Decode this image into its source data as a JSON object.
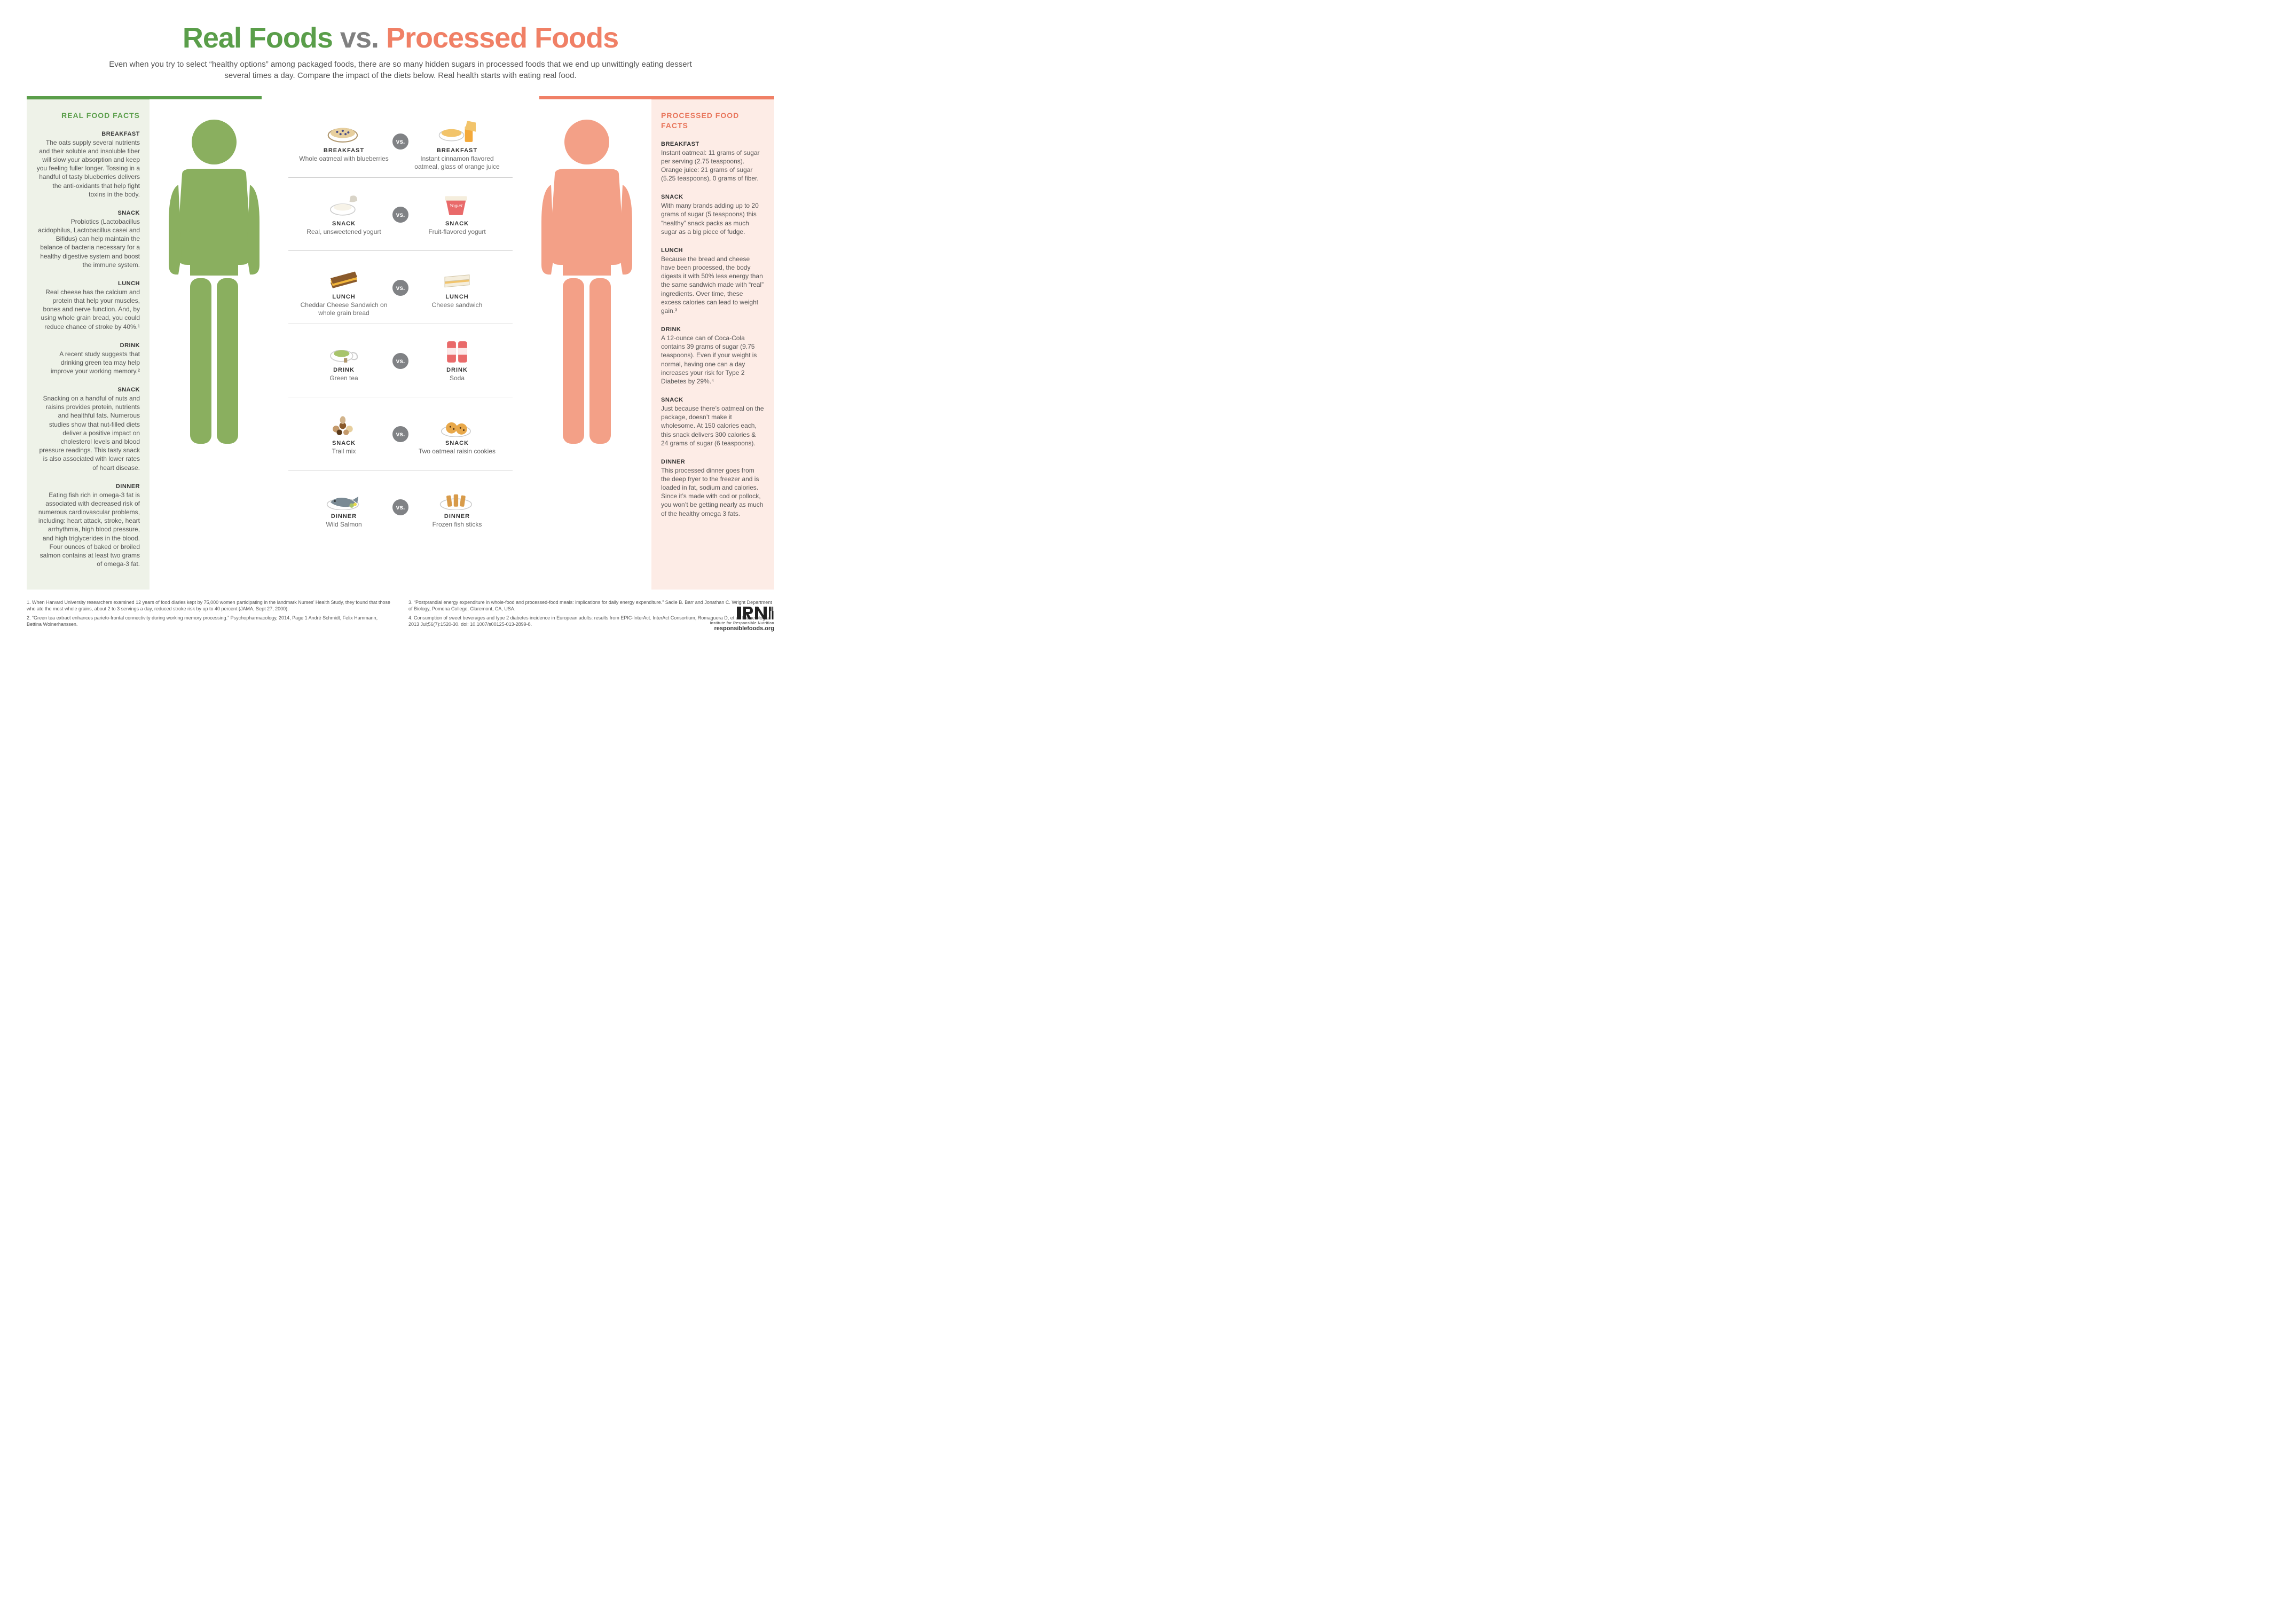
{
  "colors": {
    "real": "#5a9e4a",
    "processed": "#f08066",
    "vs_gray": "#808080",
    "badge_gray": "#808285",
    "panel_real_bg": "#eef2e8",
    "panel_proc_bg": "#fdece6",
    "person_real": "#8aaf5f",
    "person_proc": "#f3a087",
    "divider": "#cfcfcf"
  },
  "title": {
    "real": "Real Foods",
    "vs": "vs.",
    "processed": "Processed Foods"
  },
  "intro": "Even when you try to select “healthy options” among packaged foods, there are so many hidden sugars in processed foods that we end up unwittingly eating dessert several times a day. Compare the impact of the diets below. Real health starts with eating real food.",
  "badge": "vs.",
  "real_facts_title": "REAL FOOD FACTS",
  "proc_facts_title": "PROCESSED FOOD FACTS",
  "real_facts": [
    {
      "meal": "BREAKFAST",
      "text": "The oats supply several nutrients and their soluble and insoluble fiber will slow your absorption and keep you feeling fuller longer. Tossing in a handful of tasty blueberries delivers the anti-oxidants that help fight toxins in the body."
    },
    {
      "meal": "SNACK",
      "text": "Probiotics (Lactobacillus acidophilus, Lactobacillus casei and Bifidus) can help maintain the balance of bacteria necessary for a healthy digestive system and boost the immune system."
    },
    {
      "meal": "LUNCH",
      "text": "Real cheese has the calcium and protein that help your muscles, bones and nerve function. And, by using whole grain bread, you could reduce chance of stroke by 40%.¹"
    },
    {
      "meal": "DRINK",
      "text": "A recent study suggests that drinking green tea may help improve your working memory.²"
    },
    {
      "meal": "SNACK",
      "text": "Snacking on a handful of nuts and raisins provides protein, nutrients and healthful fats. Numerous studies show that nut-filled diets deliver a positive impact on cholesterol levels and blood pressure readings. This tasty snack is also associated with lower rates of heart disease."
    },
    {
      "meal": "DINNER",
      "text": "Eating fish rich in omega-3 fat is associated with decreased risk of numerous cardiovascular problems, including: heart attack, stroke, heart arrhythmia, high blood pressure, and high triglycerides in the blood. Four ounces of baked or broiled salmon contains at least two grams of omega-3 fat."
    }
  ],
  "proc_facts": [
    {
      "meal": "BREAKFAST",
      "text": "Instant oatmeal: 11 grams of sugar per serving (2.75 teaspoons). Orange juice: 21 grams of sugar (5.25 teaspoons), 0 grams of fiber."
    },
    {
      "meal": "SNACK",
      "text": "With many brands adding up to 20 grams of sugar (5 teaspoons) this “healthy” snack packs as much sugar as a big piece of fudge."
    },
    {
      "meal": "LUNCH",
      "text": "Because the bread and cheese have been processed, the body digests it with 50% less energy than the same sandwich made with “real” ingredients. Over time, these excess calories can lead to weight gain.³"
    },
    {
      "meal": "DRINK",
      "text": "A 12-ounce can of Coca-Cola contains 39 grams of sugar (9.75 teaspoons). Even if your weight is normal, having one can a day increases your risk for Type 2 Diabetes by 29%.⁴"
    },
    {
      "meal": "SNACK",
      "text": "Just because there’s oatmeal on the package, doesn’t make it wholesome. At 150 calories each, this snack delivers 300 calories & 24 grams of sugar (6 teaspoons)."
    },
    {
      "meal": "DINNER",
      "text": "This processed dinner goes from the deep fryer to the freezer and is loaded in fat, sodium and calories. Since it’s made with cod or pollock, you won’t be getting nearly as much of the healthy omega 3 fats."
    }
  ],
  "meals": [
    {
      "label": "BREAKFAST",
      "real": "Whole oatmeal with blueberries",
      "proc": "Instant cinnamon flavored oatmeal, glass of orange juice",
      "icon_real": "oatmeal",
      "icon_proc": "oj"
    },
    {
      "label": "SNACK",
      "real": "Real, unsweetened yogurt",
      "proc": "Fruit-flavored yogurt",
      "icon_real": "yogurt-plain",
      "icon_proc": "yogurt-cup"
    },
    {
      "label": "LUNCH",
      "real": "Cheddar Cheese Sandwich on whole grain bread",
      "proc": "Cheese sandwich",
      "icon_real": "sandwich-whole",
      "icon_proc": "sandwich-white"
    },
    {
      "label": "DRINK",
      "real": "Green tea",
      "proc": "Soda",
      "icon_real": "tea",
      "icon_proc": "soda"
    },
    {
      "label": "SNACK",
      "real": "Trail mix",
      "proc": "Two oatmeal raisin cookies",
      "icon_real": "trailmix",
      "icon_proc": "cookies"
    },
    {
      "label": "DINNER",
      "real": "Wild Salmon",
      "proc": "Frozen fish sticks",
      "icon_real": "salmon",
      "icon_proc": "fishsticks"
    }
  ],
  "footnotes": {
    "colA": [
      "1. When Harvard University researchers examined 12 years of food diaries kept by 75,000 women participating in the landmark Nurses’ Health Study, they found that those who ate the most whole grains, about 2 to 3 servings a day, reduced stroke risk by up to 40 percent (JAMA, Sept 27, 2000).",
      "2. “Green tea extract enhances parieto-frontal connectivity during working memory processing.” Psychopharmacology, 2014, Page 1 André Schmidt, Felix Hammann, Bettina Wolnerhanssen."
    ],
    "colB": [
      "3. “Postprandial energy expenditure in whole-food and processed-food meals: implications for daily energy expenditure.” Sadie B. Barr and Jonathan C. Wright Department of Biology, Pomona College, Claremont, CA, USA.",
      "4. Consumption of sweet beverages and type 2 diabetes incidence in European adults: results from EPIC-InterAct. InterAct Consortium, Romaguera D, et al. Diabetologia. 2013 Jul;56(7):1520-30. doi: 10.1007/s00125-013-2899-8."
    ]
  },
  "logo": {
    "tag": "Institute for Responsible Nutrition",
    "url": "responsiblefoods.org"
  }
}
